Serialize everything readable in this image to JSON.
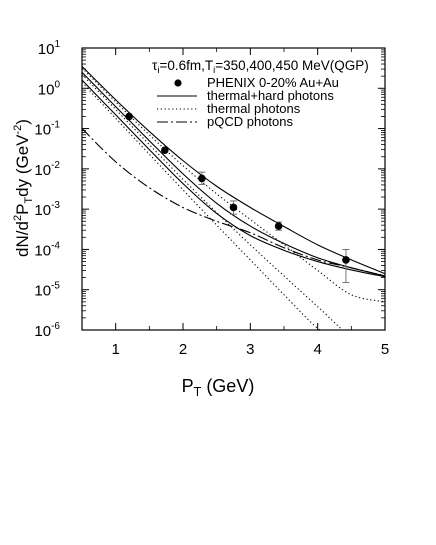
{
  "chart_data": {
    "type": "scatter",
    "xlabel": "P",
    "xlabel_sub": "T",
    "xlabel_unit": " (GeV)",
    "ylabel": "dN/d",
    "ylabel_sup": "2",
    "ylabel_mid": "P",
    "ylabel_sub": "T",
    "ylabel_tail": "dy (GeV",
    "ylabel_unitsup": "-2",
    "ylabel_end": ")",
    "xlim": [
      0.5,
      5
    ],
    "ylim_log10": [
      -6,
      1
    ],
    "yscale": "log",
    "x_ticks": [
      "1",
      "2",
      "3",
      "4",
      "5"
    ],
    "y_ticks": [
      {
        "base": "10",
        "exp": "1"
      },
      {
        "base": "10",
        "exp": "0"
      },
      {
        "base": "10",
        "exp": "-1"
      },
      {
        "base": "10",
        "exp": "-2"
      },
      {
        "base": "10",
        "exp": "-3"
      },
      {
        "base": "10",
        "exp": "-4"
      },
      {
        "base": "10",
        "exp": "-5"
      },
      {
        "base": "10",
        "exp": "-6"
      }
    ],
    "annotation": {
      "p1": "τ",
      "s1": "i",
      "p2": "=0.6fm,T",
      "s2": "i",
      "p3": "=350,400,450 MeV(QGP)"
    },
    "legend": [
      {
        "label": "PHENIX 0-20% Au+Au",
        "style": "marker"
      },
      {
        "label": "thermal+hard photons",
        "style": "solid"
      },
      {
        "label": "thermal photons",
        "style": "dotted"
      },
      {
        "label": "pQCD photons",
        "style": "dashdot"
      }
    ],
    "legend_position": "top-right",
    "series": [
      {
        "name": "PHENIX 0-20% Au+Au",
        "style": "marker",
        "points": [
          {
            "x": 1.2,
            "y": 0.2
          },
          {
            "x": 1.73,
            "y": 0.029
          },
          {
            "x": 2.28,
            "y": 0.0058,
            "err_lo": 0.0041,
            "err_hi": 0.0083
          },
          {
            "x": 2.75,
            "y": 0.0011,
            "err_lo": 0.00075,
            "err_hi": 0.0016
          },
          {
            "x": 3.42,
            "y": 0.00038,
            "err_lo": 0.0003,
            "err_hi": 0.00048
          },
          {
            "x": 4.42,
            "y": 5.5e-05,
            "err_lo": 1.5e-05,
            "err_hi": 0.0001
          }
        ]
      },
      {
        "name": "thermal+hard photons",
        "style": "solid",
        "curves": [
          {
            "x": [
              0.5,
              1.0,
              1.5,
              2.0,
              2.5,
              3.0,
              3.5,
              4.0,
              4.5,
              5.0
            ],
            "y": [
              3.5,
              0.52,
              0.085,
              0.016,
              0.0037,
              0.0011,
              0.00037,
              0.00013,
              5.5e-05,
              2.5e-05
            ]
          },
          {
            "x": [
              0.5,
              1.0,
              1.5,
              2.0,
              2.5,
              3.0,
              3.5,
              4.0,
              4.5,
              5.0
            ],
            "y": [
              2.5,
              0.35,
              0.05,
              0.0075,
              0.0014,
              0.00038,
              0.00014,
              6.2e-05,
              3.5e-05,
              2.2e-05
            ]
          },
          {
            "x": [
              0.5,
              1.0,
              1.5,
              2.0,
              2.5,
              3.0,
              3.5,
              4.0,
              4.5,
              5.0
            ],
            "y": [
              1.6,
              0.22,
              0.03,
              0.0043,
              0.00078,
              0.00022,
              9.5e-05,
              5e-05,
              3.1e-05,
              2.1e-05
            ]
          }
        ]
      },
      {
        "name": "thermal photons",
        "style": "dotted",
        "curves": [
          {
            "x": [
              0.5,
              1.0,
              1.5,
              2.0,
              2.5,
              3.0,
              3.5,
              4.0,
              4.5,
              5.0
            ],
            "y": [
              3.2,
              0.46,
              0.07,
              0.012,
              0.0024,
              0.00055,
              0.00013,
              3e-05,
              7.5e-06,
              5e-06
            ]
          },
          {
            "x": [
              0.5,
              1.0,
              1.5,
              2.0,
              2.5,
              3.0,
              3.5,
              4.0,
              4.5,
              4.75
            ],
            "y": [
              2.2,
              0.3,
              0.04,
              0.0055,
              0.00082,
              0.00013,
              2.2e-05,
              3.8e-06,
              7e-07,
              9e-07
            ]
          },
          {
            "x": [
              0.5,
              1.0,
              1.5,
              2.0,
              2.5,
              3.0,
              3.5,
              4.0,
              4.2
            ],
            "y": [
              1.4,
              0.18,
              0.023,
              0.003,
              0.0004,
              5.5e-05,
              7.5e-06,
              1.1e-06,
              9e-07
            ]
          }
        ]
      },
      {
        "name": "pQCD photons",
        "style": "dashdot",
        "curves": [
          {
            "x": [
              0.5,
              1.0,
              1.5,
              2.0,
              2.5,
              3.0,
              3.5,
              4.0,
              4.5,
              5.0
            ],
            "y": [
              0.1,
              0.015,
              0.0034,
              0.0011,
              0.0005,
              0.00026,
              0.00011,
              5.5e-05,
              3.5e-05,
              2.2e-05
            ]
          }
        ]
      }
    ]
  }
}
